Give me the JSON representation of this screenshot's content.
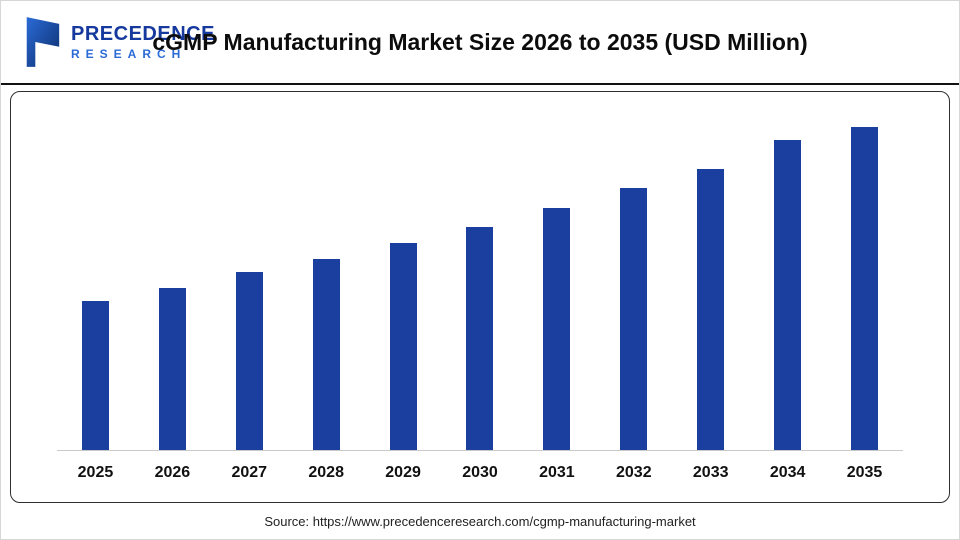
{
  "header": {
    "title": "cGMP Manufacturing Market Size 2026 to 2035 (USD Million)",
    "logo": {
      "line1": "PRECEDENCE",
      "line2": "RESEARCH"
    }
  },
  "footer": {
    "source": "Source: https://www.precedenceresearch.com/cgmp-manufacturing-market"
  },
  "colors": {
    "bar": "#1b3f9e",
    "logo_dark": "#16399d",
    "logo_light": "#2a6bd7",
    "axis_line": "#c9c9c9",
    "panel_border": "#2f2f2f"
  },
  "chart_data": {
    "type": "bar",
    "title": "cGMP Manufacturing Market Size 2026 to 2035 (USD Million)",
    "categories": [
      "2025",
      "2026",
      "2027",
      "2028",
      "2029",
      "2030",
      "2031",
      "2032",
      "2033",
      "2034",
      "2035"
    ],
    "values": [
      46,
      50,
      55,
      59,
      64,
      69,
      75,
      81,
      87,
      96,
      100
    ],
    "value_note": "No y-axis or data labels shown in image; values are relative bar heights with 2035 = 100",
    "xlabel": "",
    "ylabel": "",
    "ylim": [
      0,
      104
    ],
    "grid": false,
    "legend": false,
    "bar_color": "#1b3f9e"
  }
}
